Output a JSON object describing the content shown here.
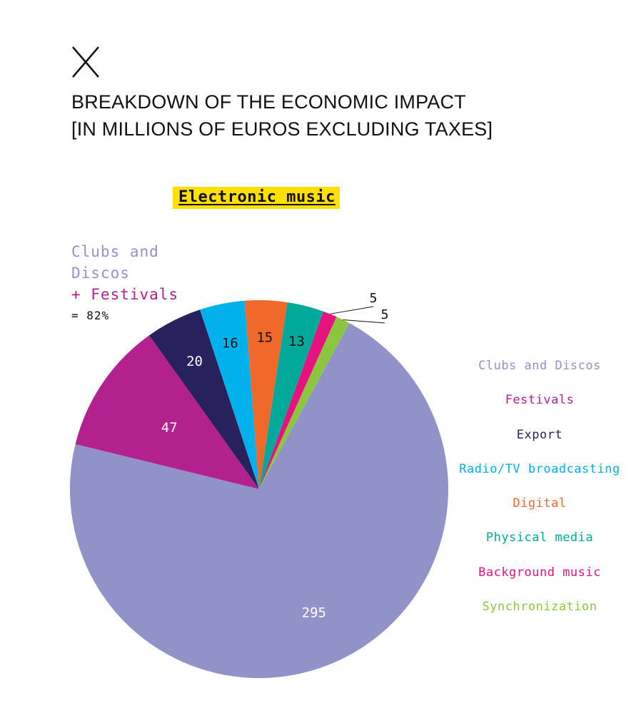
{
  "heading": {
    "line1": "BREAKDOWN OF THE ECONOMIC IMPACT",
    "line2": "[IN MILLIONS OF EUROS EXCLUDING TAXES]"
  },
  "tag_label": "Electronic music",
  "share_note": {
    "line1": "Clubs and",
    "line2": "Discos",
    "line3": "+ Festivals",
    "line4": "= 82%"
  },
  "colors": {
    "clubs": "#9193c8",
    "festivals": "#b2218e",
    "export": "#27225e",
    "radio": "#00b1ec",
    "digital": "#f0692b",
    "physical": "#00a99a",
    "background": "#e6137e",
    "sync": "#8cc63f",
    "highlight": "#ffe000"
  },
  "chart_data": {
    "type": "pie",
    "title": "BREAKDOWN OF THE ECONOMIC IMPACT [IN MILLIONS OF EUROS EXCLUDING TAXES]",
    "categories": [
      "Clubs and Discos",
      "Festivals",
      "Export",
      "Radio/TV broadcasting",
      "Digital",
      "Physical media",
      "Background music",
      "Synchronization"
    ],
    "values": [
      295,
      47,
      20,
      16,
      15,
      13,
      5,
      5
    ],
    "slice_colors": [
      "#9193c8",
      "#b2218e",
      "#27225e",
      "#00b1ec",
      "#f0692b",
      "#00a99a",
      "#e6137e",
      "#8cc63f"
    ],
    "slice_label_colors": [
      "#ffffff",
      "#ffffff",
      "#ffffff",
      "#111111",
      "#111111",
      "#111111",
      "#111111",
      "#111111"
    ],
    "legend_position": "right"
  }
}
